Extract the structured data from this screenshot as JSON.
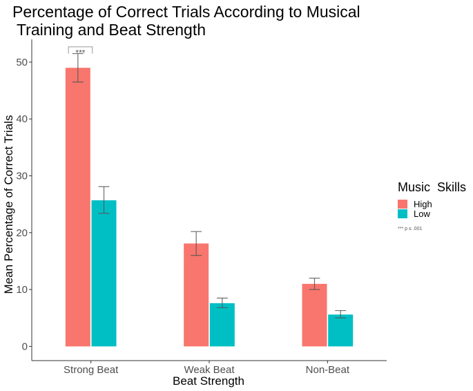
{
  "chart_data": {
    "type": "bar",
    "title_lines": [
      "Percentage of Correct Trials According to Musical",
      " Training and Beat Strength"
    ],
    "xlabel": "Beat Strength",
    "ylabel": "Mean Percentage of Correct Trials",
    "categories": [
      "Strong Beat",
      "Weak Beat",
      "Non-Beat"
    ],
    "ylim": [
      -2.5,
      54
    ],
    "yticks": [
      0,
      10,
      20,
      30,
      40,
      50
    ],
    "grid": false,
    "series": [
      {
        "name": "High",
        "color": "#F8766D",
        "values": [
          49.0,
          18.1,
          11.0
        ],
        "error_low": [
          46.5,
          16.0,
          10.0
        ],
        "error_high": [
          51.5,
          20.2,
          12.0
        ]
      },
      {
        "name": "Low",
        "color": "#00BFC4",
        "values": [
          25.7,
          7.6,
          5.6
        ],
        "error_low": [
          23.4,
          6.8,
          5.0
        ],
        "error_high": [
          28.1,
          8.5,
          6.3
        ]
      }
    ],
    "legend": {
      "title": "Music  Skills",
      "placement": "right",
      "note": "*** p ≤ .001"
    },
    "annotations": [
      {
        "text": "***",
        "category": "Strong Beat",
        "series": "High",
        "y": 52.7
      }
    ]
  }
}
